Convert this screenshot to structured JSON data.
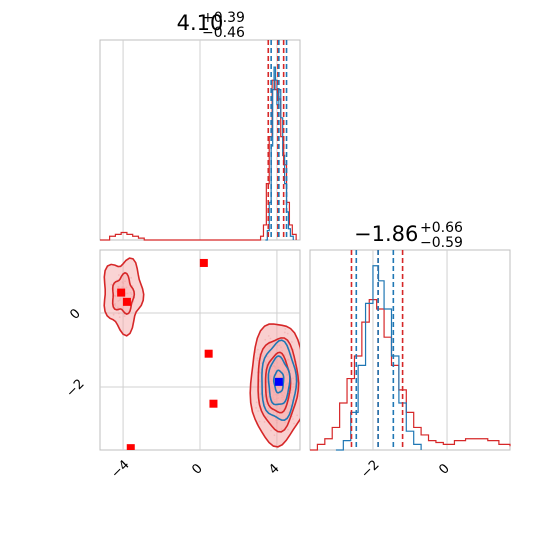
{
  "colors": {
    "red": "#d62728",
    "blue": "#1f77b4",
    "red_fill": "#f4a6a6",
    "marker_red": "#ff0000",
    "marker_blue": "#0000ff"
  },
  "chart_data": {
    "type": "corner",
    "parameters": [
      {
        "id": "p1",
        "range": [
          -5.2,
          5.2
        ],
        "ticks": [
          -4,
          0,
          4
        ],
        "tick_labels": [
          "−4",
          "0",
          "4"
        ]
      },
      {
        "id": "p2",
        "range": [
          -3.7,
          1.7
        ],
        "ticks": [
          -2,
          0
        ],
        "tick_labels": [
          "−2",
          "0"
        ],
        "panel_ticks": [
          0,
          -2
        ],
        "panel_tick_labels": [
          "0",
          "−2"
        ]
      }
    ],
    "titles": [
      {
        "value": "4.10",
        "plus": "+0.39",
        "minus": "−0.46"
      },
      {
        "value": "−1.86",
        "plus": "+0.66",
        "minus": "−0.59"
      }
    ],
    "quantile_lines": {
      "p1": {
        "red": [
          3.55,
          4.05,
          4.35
        ],
        "blue": [
          3.7,
          4.1,
          4.5
        ]
      },
      "p2": {
        "red": [
          -2.58,
          -1.86,
          -1.2
        ],
        "blue": [
          -2.45,
          -1.86,
          -1.45
        ]
      }
    },
    "hist_p1": {
      "red": [
        [
          -5.2,
          0
        ],
        [
          -4.9,
          0
        ],
        [
          -4.7,
          0.02
        ],
        [
          -4.4,
          0.03
        ],
        [
          -4.1,
          0.04
        ],
        [
          -3.8,
          0.03
        ],
        [
          -3.5,
          0.02
        ],
        [
          -3.2,
          0.01
        ],
        [
          -2.9,
          0
        ],
        [
          3.0,
          0
        ],
        [
          3.15,
          0.02
        ],
        [
          3.3,
          0.08
        ],
        [
          3.45,
          0.3
        ],
        [
          3.6,
          0.55
        ],
        [
          3.75,
          0.85
        ],
        [
          3.9,
          0.8
        ],
        [
          4.05,
          0.75
        ],
        [
          4.2,
          0.55
        ],
        [
          4.35,
          0.4
        ],
        [
          4.5,
          0.2
        ],
        [
          4.65,
          0.08
        ],
        [
          4.8,
          0.03
        ],
        [
          5.0,
          0
        ]
      ],
      "blue": [
        [
          3.4,
          0
        ],
        [
          3.5,
          0.05
        ],
        [
          3.6,
          0.2
        ],
        [
          3.7,
          0.5
        ],
        [
          3.78,
          0.8
        ],
        [
          3.85,
          0.92
        ],
        [
          3.92,
          0.85
        ],
        [
          4.0,
          0.72
        ],
        [
          4.1,
          0.8
        ],
        [
          4.2,
          0.65
        ],
        [
          4.3,
          0.45
        ],
        [
          4.4,
          0.3
        ],
        [
          4.5,
          0.15
        ],
        [
          4.6,
          0.06
        ],
        [
          4.7,
          0.02
        ],
        [
          4.85,
          0
        ]
      ]
    },
    "hist_p2": {
      "red": [
        [
          -3.7,
          0
        ],
        [
          -3.5,
          0.03
        ],
        [
          -3.3,
          0.06
        ],
        [
          -3.1,
          0.12
        ],
        [
          -2.9,
          0.25
        ],
        [
          -2.7,
          0.38
        ],
        [
          -2.5,
          0.5
        ],
        [
          -2.3,
          0.68
        ],
        [
          -2.1,
          0.8
        ],
        [
          -1.9,
          0.75
        ],
        [
          -1.7,
          0.6
        ],
        [
          -1.5,
          0.45
        ],
        [
          -1.3,
          0.32
        ],
        [
          -1.1,
          0.2
        ],
        [
          -0.9,
          0.12
        ],
        [
          -0.7,
          0.08
        ],
        [
          -0.5,
          0.05
        ],
        [
          -0.3,
          0.04
        ],
        [
          -0.1,
          0.03
        ],
        [
          0.2,
          0.05
        ],
        [
          0.5,
          0.06
        ],
        [
          0.8,
          0.06
        ],
        [
          1.1,
          0.05
        ],
        [
          1.4,
          0.03
        ],
        [
          1.7,
          0.02
        ]
      ],
      "blue": [
        [
          -3.0,
          0
        ],
        [
          -2.8,
          0.05
        ],
        [
          -2.6,
          0.2
        ],
        [
          -2.4,
          0.45
        ],
        [
          -2.2,
          0.78
        ],
        [
          -2.0,
          0.98
        ],
        [
          -1.85,
          0.9
        ],
        [
          -1.7,
          0.75
        ],
        [
          -1.5,
          0.5
        ],
        [
          -1.3,
          0.25
        ],
        [
          -1.1,
          0.1
        ],
        [
          -0.9,
          0.03
        ],
        [
          -0.7,
          0
        ]
      ]
    },
    "contours_main_red": [
      {
        "center": [
          4.05,
          -1.9
        ],
        "radius": [
          1.45,
          1.65
        ],
        "fill": 0.9
      },
      {
        "center": [
          4.05,
          -1.9
        ],
        "radius": [
          1.05,
          1.25
        ],
        "fill": 0.75
      },
      {
        "center": [
          4.05,
          -1.9
        ],
        "radius": [
          0.65,
          0.8
        ],
        "fill": 0.6
      }
    ],
    "contours_main_blue": [
      {
        "center": [
          4.1,
          -1.85
        ],
        "radius": [
          0.9,
          1.05
        ]
      },
      {
        "center": [
          4.1,
          -1.85
        ],
        "radius": [
          0.55,
          0.65
        ]
      },
      {
        "center": [
          4.1,
          -1.85
        ],
        "radius": [
          0.25,
          0.3
        ]
      }
    ],
    "contours_minor_red": [
      {
        "center": [
          -4.0,
          0.5
        ],
        "radius": [
          1.0,
          0.95
        ],
        "fill": 0.8
      },
      {
        "center": [
          -4.0,
          0.5
        ],
        "radius": [
          0.55,
          0.5
        ],
        "fill": 0.65
      }
    ],
    "markers_red": [
      [
        0.2,
        1.35
      ],
      [
        -4.1,
        0.55
      ],
      [
        -3.8,
        0.3
      ],
      [
        0.45,
        -1.1
      ],
      [
        0.7,
        -2.45
      ],
      [
        -3.6,
        -3.65
      ]
    ],
    "marker_blue": [
      4.1,
      -1.86
    ]
  }
}
